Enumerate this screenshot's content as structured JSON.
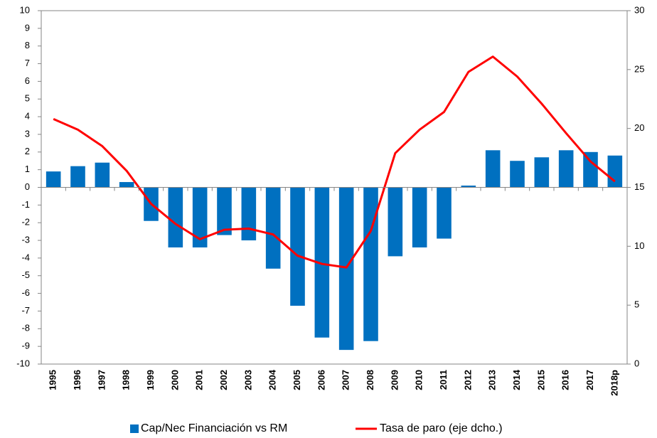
{
  "chart_data": {
    "type": "bar",
    "categories": [
      "1995",
      "1996",
      "1997",
      "1998",
      "1999",
      "2000",
      "2001",
      "2002",
      "2003",
      "2004",
      "2005",
      "2006",
      "2007",
      "2008",
      "2009",
      "2010",
      "2011",
      "2012",
      "2013",
      "2014",
      "2015",
      "2016",
      "2017",
      "2018p"
    ],
    "series": [
      {
        "name": "Cap/Nec Financiación vs RM",
        "type": "bar",
        "color": "#0070c0",
        "values": [
          0.9,
          1.2,
          1.4,
          0.3,
          -1.9,
          -3.4,
          -3.4,
          -2.7,
          -3.0,
          -4.6,
          -6.7,
          -8.5,
          -9.2,
          -8.7,
          -3.9,
          -3.4,
          -2.9,
          0.1,
          2.1,
          1.5,
          1.7,
          2.1,
          2.0,
          1.8
        ]
      },
      {
        "name": "Tasa de paro (eje dcho.)",
        "type": "line",
        "axis": "y2",
        "color": "#ff0000",
        "values": [
          20.8,
          19.9,
          18.5,
          16.4,
          13.6,
          11.9,
          10.6,
          11.4,
          11.5,
          11.0,
          9.2,
          8.5,
          8.2,
          11.3,
          17.9,
          19.9,
          21.4,
          24.8,
          26.1,
          24.4,
          22.1,
          19.6,
          17.2,
          15.5
        ]
      }
    ],
    "ylim": [
      -10,
      10
    ],
    "yticks": [
      -10,
      -9,
      -8,
      -7,
      -6,
      -5,
      -4,
      -3,
      -2,
      -1,
      0,
      1,
      2,
      3,
      4,
      5,
      6,
      7,
      8,
      9,
      10
    ],
    "y2lim": [
      0,
      30
    ],
    "y2ticks": [
      0,
      5,
      10,
      15,
      20,
      25,
      30
    ],
    "grid": false
  }
}
